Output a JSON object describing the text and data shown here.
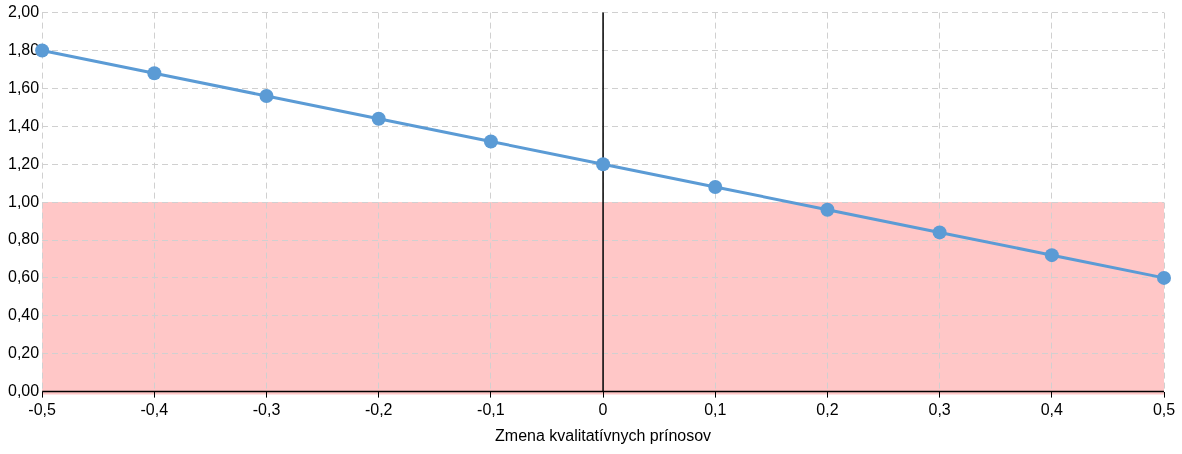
{
  "chart_data": {
    "type": "line",
    "xlabel": "Zmena kvalitatívnych prínosov",
    "x": [
      -0.5,
      -0.4,
      -0.3,
      -0.2,
      -0.1,
      0,
      0.1,
      0.2,
      0.3,
      0.4,
      0.5
    ],
    "series": [
      {
        "color": "#5b9bd5",
        "values": [
          1.8,
          1.68,
          1.56,
          1.44,
          1.32,
          1.2,
          1.08,
          0.96,
          0.84,
          0.72,
          0.6
        ]
      }
    ],
    "xlim": [
      -0.5,
      0.5
    ],
    "xticks": [
      {
        "value": -0.5,
        "label": "-0,5"
      },
      {
        "value": -0.4,
        "label": "-0,4"
      },
      {
        "value": -0.3,
        "label": "-0,3"
      },
      {
        "value": -0.2,
        "label": "-0,2"
      },
      {
        "value": -0.1,
        "label": "-0,1"
      },
      0,
      {
        "value": 0.1,
        "label": "0,1"
      },
      {
        "value": 0.2,
        "label": "0,2"
      },
      {
        "value": 0.3,
        "label": "0,3"
      },
      {
        "value": 0.4,
        "label": "0,4"
      },
      {
        "value": 0.5,
        "label": "0,5"
      }
    ],
    "ylim": [
      0,
      2
    ],
    "yticks": [
      {
        "value": 0,
        "label": "0,00"
      },
      {
        "value": 0.2,
        "label": "0,20"
      },
      {
        "value": 0.4,
        "label": "0,40"
      },
      {
        "value": 0.6,
        "label": "0,60"
      },
      {
        "value": 0.8,
        "label": "0,80"
      },
      {
        "value": 1,
        "label": "1,00"
      },
      {
        "value": 1.2,
        "label": "1,20"
      },
      {
        "value": 1.4,
        "label": "1,40"
      },
      {
        "value": 1.6,
        "label": "1,60"
      },
      {
        "value": 1.8,
        "label": "1,80"
      },
      {
        "value": 2,
        "label": "2,00"
      }
    ],
    "ref_lines": [
      {
        "axis": "x",
        "value": 0,
        "color": "#000000"
      }
    ],
    "bands": [
      {
        "axis": "y",
        "from": 0,
        "to": 1,
        "color": "#ff8f8f"
      }
    ],
    "grid": true,
    "legend": false,
    "marker": "circle",
    "line_style": "solid"
  }
}
